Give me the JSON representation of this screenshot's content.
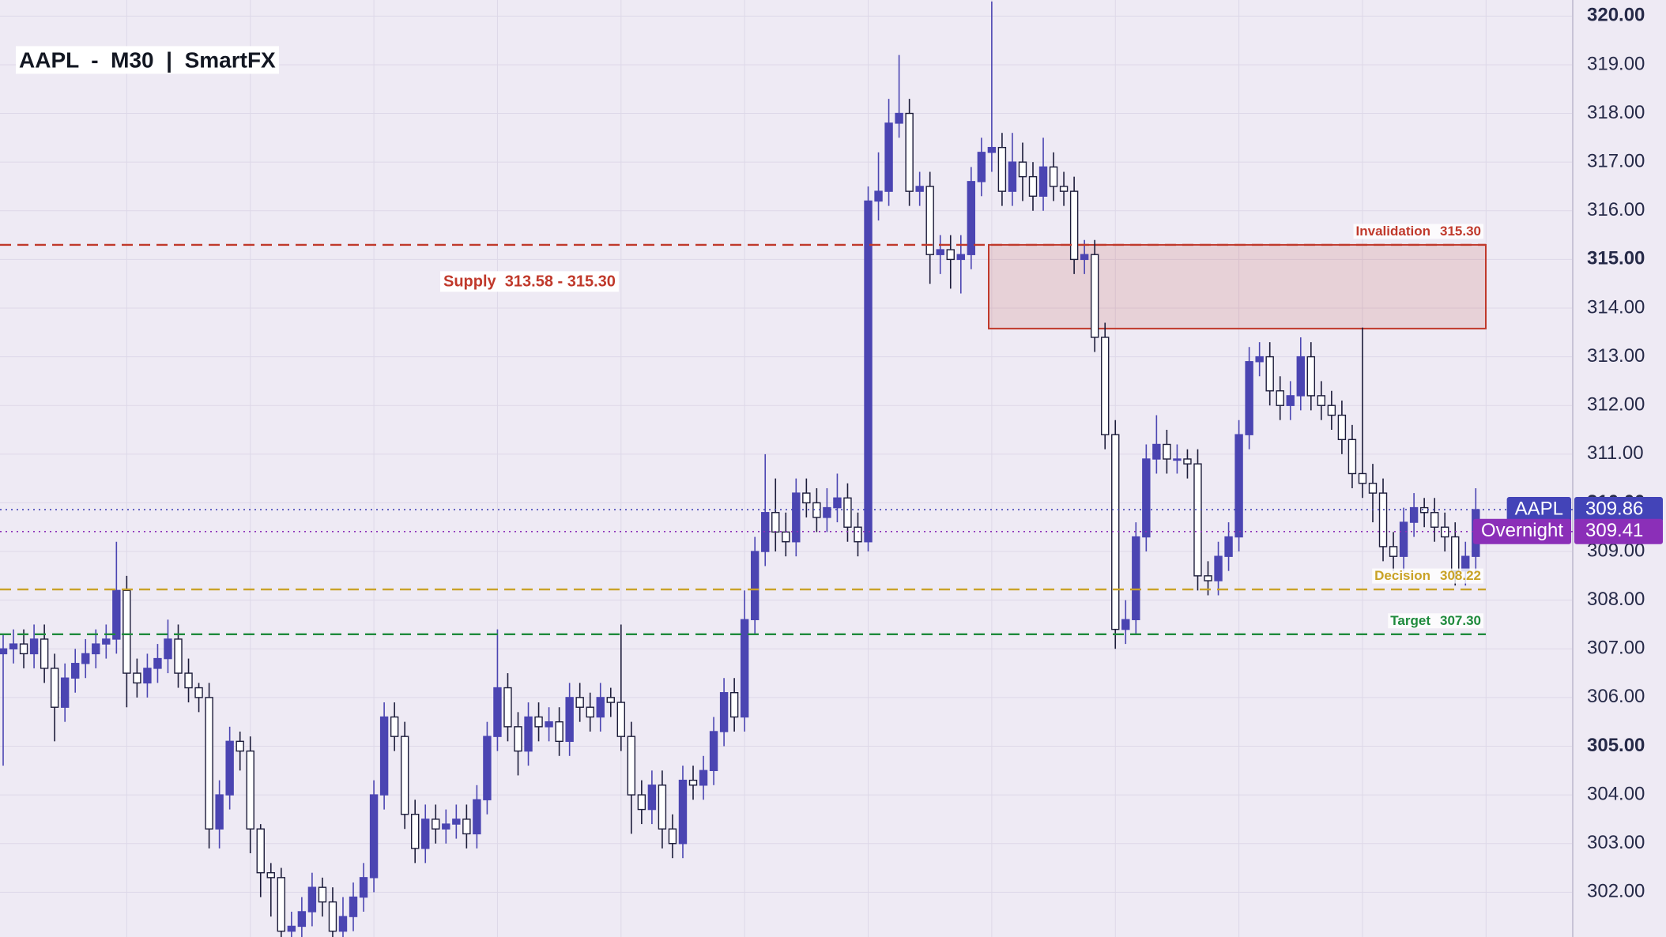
{
  "chart_data": {
    "type": "candlestick",
    "title": "AAPL  -  M30  |  SmartFX",
    "ylim": [
      301.08,
      320.33
    ],
    "yticks": [
      {
        "value": 302,
        "label": "302.00"
      },
      {
        "value": 303,
        "label": "303.00"
      },
      {
        "value": 304,
        "label": "304.00"
      },
      {
        "value": 305,
        "label": "305.00"
      },
      {
        "value": 306,
        "label": "306.00"
      },
      {
        "value": 307,
        "label": "307.00"
      },
      {
        "value": 308,
        "label": "308.00"
      },
      {
        "value": 309,
        "label": "309.00"
      },
      {
        "value": 310,
        "label": "310.00"
      },
      {
        "value": 311,
        "label": "311.00"
      },
      {
        "value": 312,
        "label": "312.00"
      },
      {
        "value": 313,
        "label": "313.00"
      },
      {
        "value": 314,
        "label": "314.00"
      },
      {
        "value": 315,
        "label": "315.00"
      },
      {
        "value": 316,
        "label": "316.00"
      },
      {
        "value": 317,
        "label": "317.00"
      },
      {
        "value": 318,
        "label": "318.00"
      },
      {
        "value": 319,
        "label": "319.00"
      },
      {
        "value": 320,
        "label": "320.00"
      }
    ],
    "grid": true,
    "series": [
      {
        "name": "AAPL",
        "up_color": "#4b45b2",
        "down_color": "#ffffff",
        "outline_color": "#1c1c3a",
        "open": [
          306.9,
          307.0,
          307.1,
          306.9,
          307.2,
          306.6,
          305.8,
          306.4,
          306.7,
          306.9,
          307.1,
          307.2,
          308.2,
          306.5,
          306.3,
          306.6,
          306.8,
          307.2,
          306.5,
          306.2,
          306.0,
          303.3,
          304.0,
          305.1,
          304.9,
          303.3,
          302.4,
          302.3,
          301.2,
          301.3,
          301.6,
          302.1,
          301.8,
          301.2,
          301.5,
          301.9,
          302.3,
          304.0,
          305.6,
          305.2,
          303.6,
          302.9,
          303.5,
          303.3,
          303.4,
          303.5,
          303.2,
          303.9,
          305.2,
          306.2,
          305.4,
          304.9,
          305.6,
          305.4,
          305.5,
          305.1,
          306.0,
          305.8,
          305.6,
          306.0,
          305.9,
          305.2,
          304.0,
          303.7,
          304.2,
          303.3,
          303.0,
          304.3,
          304.2,
          304.5,
          305.3,
          306.1,
          305.6,
          307.6,
          309.0,
          309.8,
          309.4,
          309.2,
          310.2,
          310.0,
          309.7,
          309.9,
          310.1,
          309.5,
          309.2,
          316.2,
          316.4,
          317.8,
          318.0,
          316.4,
          316.5,
          315.1,
          315.2,
          315.0,
          315.1,
          316.6,
          317.2,
          317.3,
          316.4,
          317.0,
          316.7,
          316.3,
          316.9,
          316.5,
          316.4,
          315.0,
          315.1,
          313.4,
          311.4,
          307.4,
          307.6,
          309.3,
          310.9,
          311.2,
          310.9,
          310.9,
          310.8,
          308.5,
          308.4,
          308.9,
          309.3,
          311.4,
          312.9,
          313.0,
          312.3,
          312.0,
          312.2,
          313.0,
          312.2,
          312.0,
          311.8,
          311.3,
          310.6,
          310.4,
          310.2,
          309.1,
          308.9,
          309.6,
          309.9,
          309.8,
          309.5,
          309.3,
          308.6,
          308.9
        ],
        "high": [
          307.3,
          307.4,
          307.4,
          307.5,
          307.5,
          306.9,
          306.7,
          307.0,
          307.2,
          307.4,
          307.5,
          309.2,
          308.5,
          306.8,
          306.9,
          307.1,
          307.6,
          307.5,
          306.8,
          306.3,
          306.3,
          304.3,
          305.4,
          305.3,
          305.2,
          303.4,
          302.6,
          302.5,
          301.6,
          301.9,
          302.4,
          302.3,
          302.1,
          301.9,
          302.2,
          302.6,
          304.3,
          305.9,
          305.9,
          305.5,
          303.9,
          303.8,
          303.8,
          303.7,
          303.8,
          303.8,
          304.2,
          305.5,
          307.4,
          306.5,
          305.7,
          305.9,
          305.9,
          305.8,
          305.8,
          306.3,
          306.3,
          306.1,
          306.3,
          306.2,
          307.5,
          305.5,
          304.3,
          304.5,
          304.5,
          303.6,
          304.6,
          304.6,
          304.8,
          305.6,
          306.4,
          306.4,
          308.2,
          309.3,
          311.0,
          310.5,
          309.8,
          310.5,
          310.5,
          310.3,
          310.3,
          310.6,
          310.4,
          309.8,
          316.5,
          317.2,
          318.3,
          319.2,
          318.3,
          316.8,
          316.8,
          315.5,
          315.5,
          315.5,
          316.9,
          317.5,
          320.3,
          317.6,
          317.6,
          317.4,
          317.0,
          317.5,
          317.2,
          316.8,
          316.7,
          315.4,
          315.4,
          313.7,
          311.7,
          308.0,
          309.6,
          311.2,
          311.8,
          311.5,
          311.2,
          311.1,
          311.1,
          308.8,
          309.2,
          309.6,
          311.7,
          313.2,
          313.3,
          313.3,
          312.6,
          312.5,
          313.4,
          313.3,
          312.5,
          312.3,
          312.1,
          311.6,
          313.6,
          310.8,
          310.5,
          309.4,
          309.9,
          310.2,
          310.1,
          310.1,
          309.8,
          309.6,
          309.2,
          310.3
        ],
        "low": [
          304.6,
          306.7,
          306.6,
          306.6,
          306.3,
          305.1,
          305.5,
          306.1,
          306.4,
          306.6,
          306.8,
          306.9,
          305.8,
          306.0,
          306.0,
          306.3,
          306.5,
          306.2,
          305.9,
          305.7,
          302.9,
          302.9,
          303.7,
          304.5,
          302.8,
          301.9,
          301.5,
          300.9,
          300.9,
          301.0,
          301.3,
          301.5,
          300.9,
          300.9,
          301.2,
          301.6,
          302.0,
          303.7,
          304.9,
          303.3,
          302.6,
          302.6,
          303.0,
          303.0,
          303.1,
          302.9,
          302.9,
          303.6,
          304.9,
          305.1,
          304.4,
          304.6,
          305.1,
          305.1,
          304.8,
          304.8,
          305.5,
          305.3,
          305.3,
          305.6,
          304.9,
          303.2,
          303.4,
          303.4,
          302.9,
          302.7,
          302.7,
          303.9,
          303.9,
          304.2,
          305.0,
          305.3,
          305.3,
          307.3,
          308.7,
          309.0,
          308.9,
          308.9,
          309.7,
          309.4,
          309.4,
          309.6,
          309.2,
          308.9,
          309.0,
          315.8,
          316.1,
          317.5,
          316.1,
          316.1,
          314.5,
          314.7,
          314.4,
          314.3,
          314.8,
          316.3,
          316.8,
          316.1,
          316.1,
          316.2,
          316.0,
          316.0,
          316.2,
          316.1,
          314.7,
          314.7,
          313.1,
          311.1,
          307.0,
          307.1,
          307.3,
          309.0,
          310.6,
          310.6,
          310.6,
          310.5,
          308.2,
          308.1,
          308.1,
          308.6,
          309.0,
          311.1,
          312.6,
          312.0,
          311.7,
          311.7,
          311.9,
          311.9,
          311.7,
          311.5,
          311.0,
          310.3,
          310.1,
          309.6,
          308.8,
          308.6,
          308.6,
          309.3,
          309.5,
          309.2,
          309.0,
          308.3,
          308.3,
          308.6
        ],
        "close": [
          307.0,
          307.1,
          306.9,
          307.2,
          306.6,
          305.8,
          306.4,
          306.7,
          306.9,
          307.1,
          307.2,
          308.2,
          306.5,
          306.3,
          306.6,
          306.8,
          307.2,
          306.5,
          306.2,
          306.0,
          303.3,
          304.0,
          305.1,
          304.9,
          303.3,
          302.4,
          302.3,
          301.2,
          301.3,
          301.6,
          302.1,
          301.8,
          301.2,
          301.5,
          301.9,
          302.3,
          304.0,
          305.6,
          305.2,
          303.6,
          302.9,
          303.5,
          303.3,
          303.4,
          303.5,
          303.2,
          303.9,
          305.2,
          306.2,
          305.4,
          304.9,
          305.6,
          305.4,
          305.5,
          305.1,
          306.0,
          305.8,
          305.6,
          306.0,
          305.9,
          305.2,
          304.0,
          303.7,
          304.2,
          303.3,
          303.0,
          304.3,
          304.2,
          304.5,
          305.3,
          306.1,
          305.6,
          307.6,
          309.0,
          309.8,
          309.4,
          309.2,
          310.2,
          310.0,
          309.7,
          309.9,
          310.1,
          309.5,
          309.2,
          316.2,
          316.4,
          317.8,
          318.0,
          316.4,
          316.5,
          315.1,
          315.2,
          315.0,
          315.1,
          316.6,
          317.2,
          317.3,
          316.4,
          317.0,
          316.7,
          316.3,
          316.9,
          316.5,
          316.4,
          315.0,
          315.1,
          313.4,
          311.4,
          307.4,
          307.6,
          309.3,
          310.9,
          311.2,
          310.9,
          310.9,
          310.8,
          308.5,
          308.4,
          308.9,
          309.3,
          311.4,
          312.9,
          313.0,
          312.3,
          312.0,
          312.2,
          313.0,
          312.2,
          312.0,
          311.8,
          311.3,
          310.6,
          310.4,
          310.2,
          309.1,
          308.9,
          309.6,
          309.9,
          309.8,
          309.5,
          309.3,
          308.6,
          308.9,
          309.86
        ]
      }
    ],
    "price_lines": [
      {
        "name": "AAPL",
        "value": 309.86,
        "color": "#4344b8"
      },
      {
        "name": "Overnight",
        "value": 309.41,
        "color": "#8b2fb8"
      }
    ],
    "levels": [
      {
        "name": "Invalidation",
        "value": 315.3,
        "value_label": "315.30",
        "color": "#c0392b"
      },
      {
        "name": "Decision",
        "value": 308.22,
        "color": "#c9a227"
      },
      {
        "name": "Target",
        "value": 307.3,
        "value_label": "307.30",
        "color": "#1e8a3c"
      }
    ],
    "zone": {
      "label": "Supply  313.58 - 315.30",
      "low": 313.58,
      "high": 315.3,
      "color": "#c0392b"
    }
  }
}
